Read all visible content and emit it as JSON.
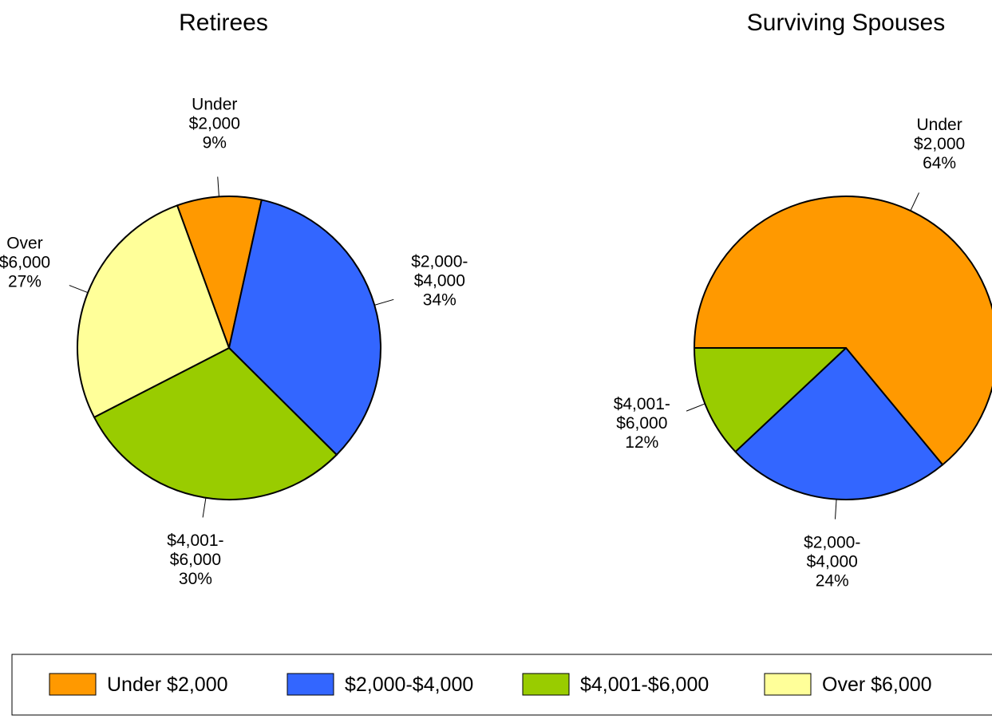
{
  "chart_data": [
    {
      "type": "pie",
      "title": "Retirees",
      "categories": [
        "Under $2,000",
        "$2,000-$4,000",
        "$4,001-$6,000",
        "Over $6,000"
      ],
      "values": [
        9,
        34,
        30,
        27
      ],
      "value_labels": [
        "9%",
        "34%",
        "30%",
        "27%"
      ],
      "colors": [
        "#ff9900",
        "#3366ff",
        "#99cc00",
        "#ffff99"
      ],
      "legend": "bottom"
    },
    {
      "type": "pie",
      "title": "Surviving Spouses",
      "categories": [
        "Under $2,000",
        "$2,000-$4,000",
        "$4,001-$6,000"
      ],
      "values": [
        64,
        24,
        12
      ],
      "value_labels": [
        "64%",
        "24%",
        "12%"
      ],
      "colors": [
        "#ff9900",
        "#3366ff",
        "#99cc00"
      ]
    }
  ]
}
